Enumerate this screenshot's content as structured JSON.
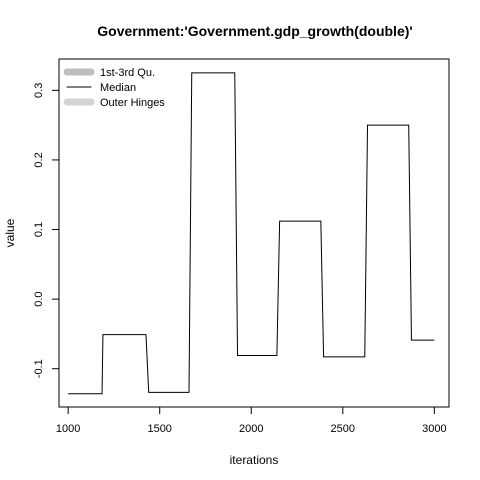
{
  "chart_data": {
    "type": "line",
    "title": "Government:'Government.gdp_growth(double)'",
    "xlabel": "iterations",
    "ylabel": "value",
    "xlim": [
      950,
      3080
    ],
    "ylim": [
      -0.155,
      0.345
    ],
    "x_ticks": [
      1000,
      1500,
      2000,
      2500,
      3000
    ],
    "x_tick_labels": [
      "1000",
      "1500",
      "2000",
      "2500",
      "3000"
    ],
    "y_ticks": [
      -0.1,
      0.0,
      0.1,
      0.2,
      0.3
    ],
    "y_tick_labels": [
      "-0.1",
      "0.0",
      "0.1",
      "0.2",
      "0.3"
    ],
    "legend": {
      "position": "top-left",
      "entries": [
        {
          "label": "1st-3rd Qu.",
          "color": "#bebebe"
        },
        {
          "label": "Median",
          "color": "#000000"
        },
        {
          "label": "Outer Hinges",
          "color": "#d3d3d3"
        }
      ]
    },
    "series": [
      {
        "name": "Median",
        "color": "#000000",
        "x": [
          1000,
          1185,
          1190,
          1425,
          1440,
          1660,
          1675,
          1910,
          1925,
          2140,
          2155,
          2380,
          2395,
          2620,
          2635,
          2860,
          2875,
          3000
        ],
        "y": [
          -0.136,
          -0.136,
          -0.051,
          -0.051,
          -0.134,
          -0.134,
          0.325,
          0.325,
          -0.081,
          -0.081,
          0.112,
          0.112,
          -0.083,
          -0.083,
          0.25,
          0.25,
          -0.059,
          -0.059
        ]
      }
    ]
  }
}
